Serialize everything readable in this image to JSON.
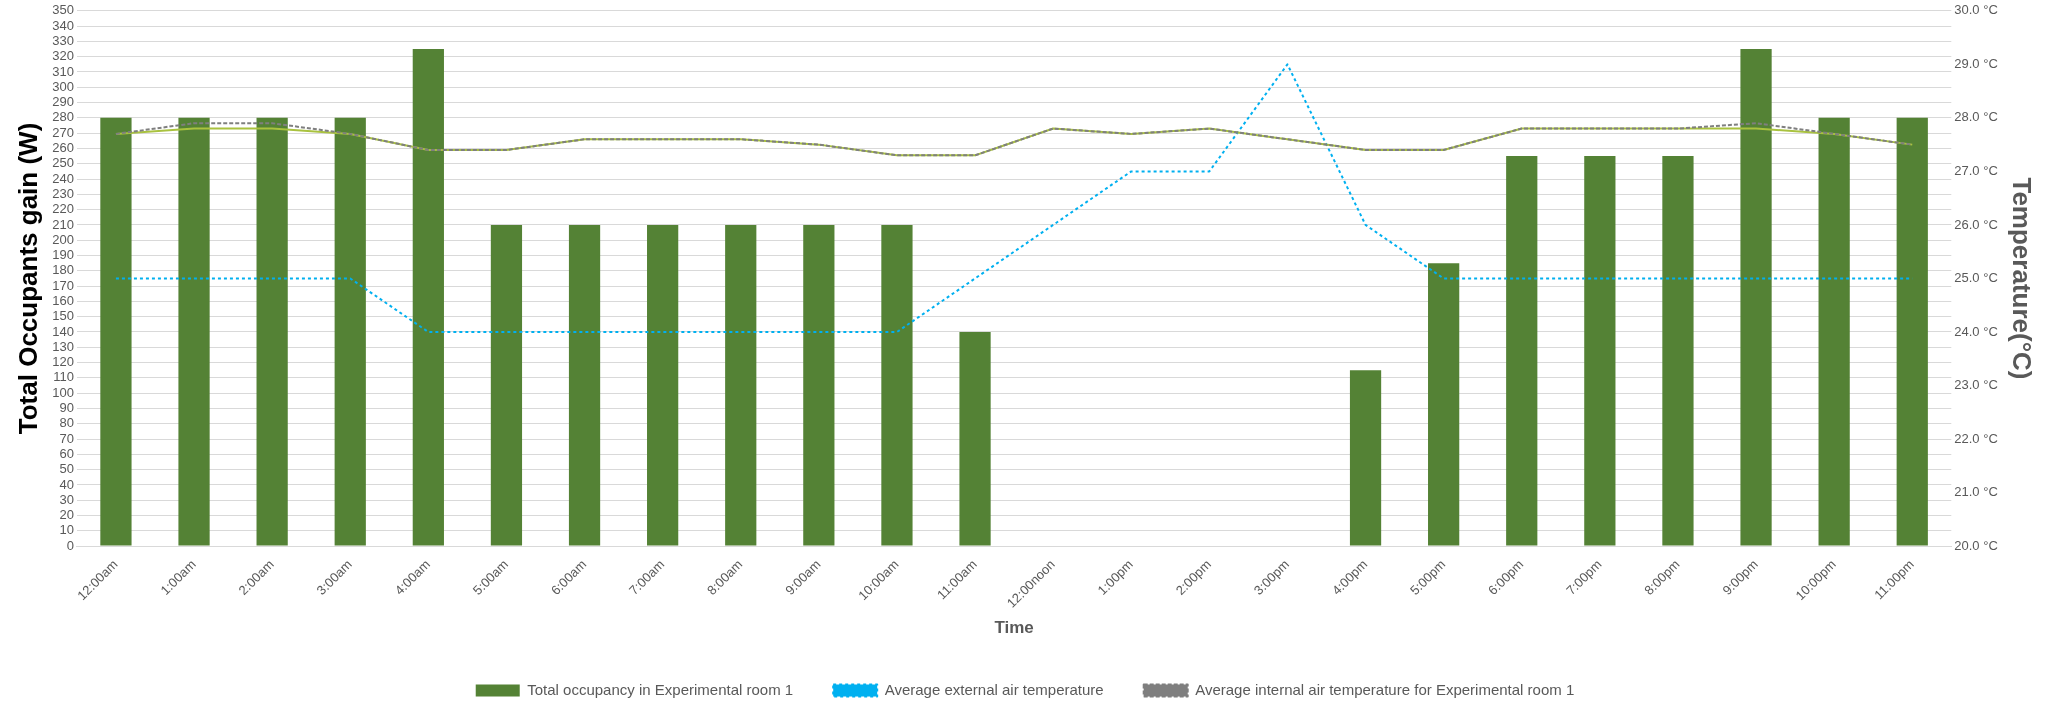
{
  "chart_data": {
    "type": "bar",
    "xlabel": "Time",
    "ylabel": "Total Occupants gain (W)",
    "y2label": "Temperature(°C)",
    "categories": [
      "12:00am",
      "1:00am",
      "2:00am",
      "3:00am",
      "4:00am",
      "5:00am",
      "6:00am",
      "7:00am",
      "8:00am",
      "9:00am",
      "10:00am",
      "11:00am",
      "12:00noon",
      "1:00pm",
      "2:00pm",
      "3:00pm",
      "4:00pm",
      "5:00pm",
      "6:00pm",
      "7:00pm",
      "8:00pm",
      "9:00pm",
      "10:00pm",
      "11:00pm"
    ],
    "series": [
      {
        "name": "Total occupancy in Experimental room 1",
        "color": "#548235",
        "values": [
          280,
          280,
          280,
          280,
          325,
          210,
          210,
          210,
          210,
          210,
          210,
          140,
          0,
          0,
          0,
          0,
          115,
          185,
          255,
          255,
          255,
          325,
          280,
          280
        ]
      },
      {
        "name": "Average external air temperature",
        "type": "line",
        "axis": "y2",
        "color": "#00b0f0",
        "line_style": "dotted",
        "marker": "none",
        "values": [
          25,
          25,
          25,
          25,
          24,
          24,
          24,
          24,
          24,
          24,
          24,
          25,
          26,
          27,
          27,
          29,
          26,
          25,
          25,
          25,
          25,
          25,
          25,
          25
        ]
      },
      {
        "type": "line",
        "axis": "y2",
        "color": "#a9c23f",
        "line_style": "solid",
        "marker": "none",
        "values": [
          27.7,
          27.8,
          27.8,
          27.7,
          27.4,
          27.4,
          27.6,
          27.6,
          27.6,
          27.5,
          27.3,
          27.3,
          27.8,
          27.7,
          27.8,
          27.6,
          27.4,
          27.4,
          27.8,
          27.8,
          27.8,
          27.8,
          27.7,
          27.5
        ]
      },
      {
        "name": "Average internal air temperature for Experimental room 1",
        "type": "line",
        "axis": "y2",
        "color": "#7f7f7f",
        "line_style": "dashed",
        "marker": "none",
        "values": [
          27.7,
          27.9,
          27.9,
          27.7,
          27.4,
          27.4,
          27.6,
          27.6,
          27.6,
          27.5,
          27.3,
          27.3,
          27.8,
          27.7,
          27.8,
          27.6,
          27.4,
          27.4,
          27.8,
          27.8,
          27.8,
          27.9,
          27.7,
          27.5
        ]
      }
    ],
    "ylim": [
      0,
      350
    ],
    "yticks": [
      0,
      10,
      20,
      30,
      40,
      50,
      60,
      70,
      80,
      90,
      100,
      110,
      120,
      130,
      140,
      150,
      160,
      170,
      180,
      190,
      200,
      210,
      220,
      230,
      240,
      250,
      260,
      270,
      280,
      290,
      300,
      310,
      320,
      330,
      340,
      350
    ],
    "y2lim": [
      20,
      30
    ],
    "y2ticks": [
      {
        "value": 20,
        "label": "20.0 °C"
      },
      {
        "value": 21,
        "label": "21.0 °C"
      },
      {
        "value": 22,
        "label": "22.0 °C"
      },
      {
        "value": 23,
        "label": "23.0 °C"
      },
      {
        "value": 24,
        "label": "24.0 °C"
      },
      {
        "value": 25,
        "label": "25.0 °C"
      },
      {
        "value": 26,
        "label": "26.0 °C"
      },
      {
        "value": 27,
        "label": "27.0 °C"
      },
      {
        "value": 28,
        "label": "28.0 °C"
      },
      {
        "value": 29,
        "label": "29.0 °C"
      },
      {
        "value": 30,
        "label": "30.0 °C"
      }
    ],
    "grid": "y",
    "legend": "bottom"
  }
}
